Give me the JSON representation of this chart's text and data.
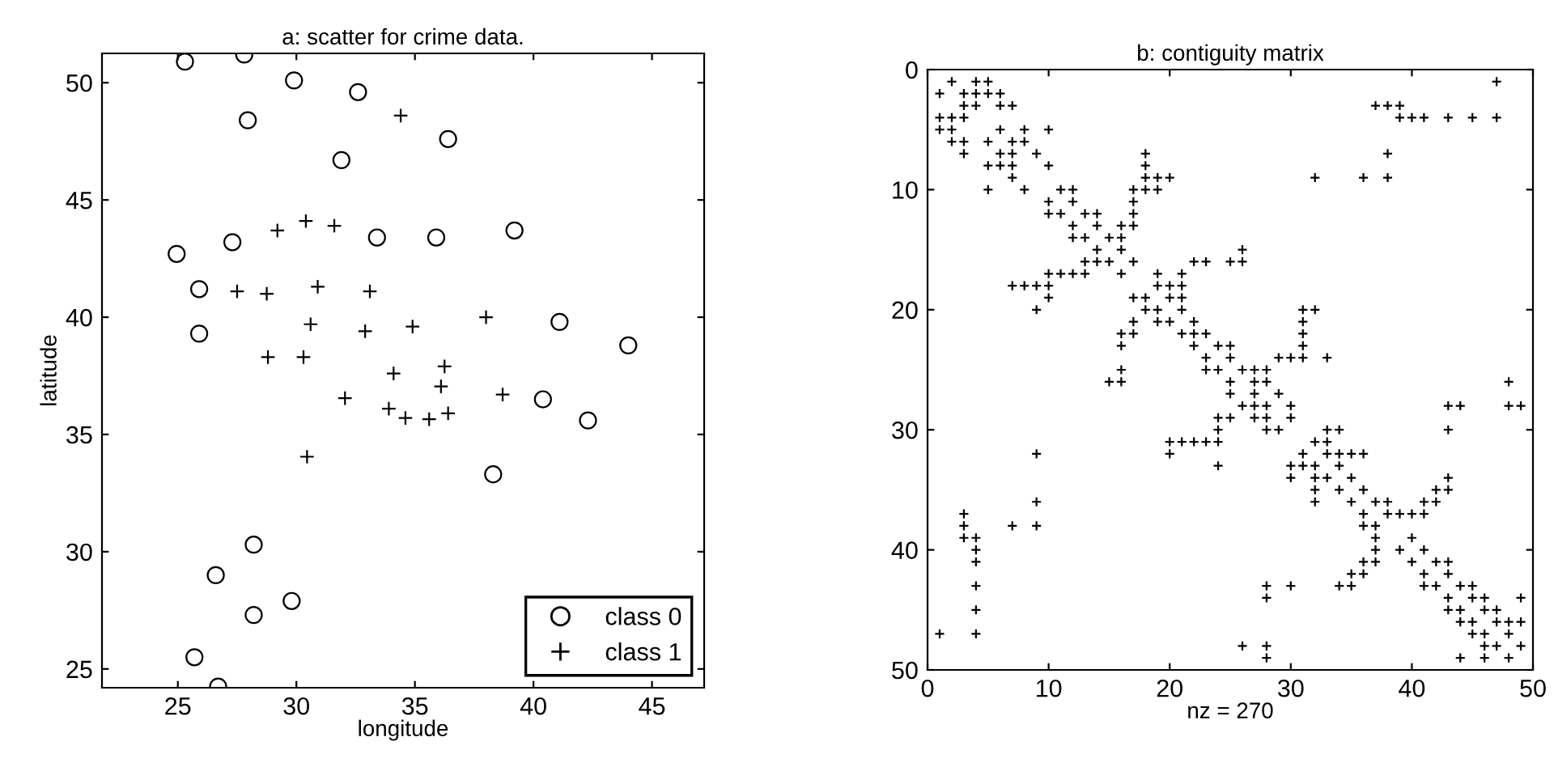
{
  "chart_data": [
    {
      "type": "scatter",
      "title": "a: scatter for crime data.",
      "xlabel": "longitude",
      "ylabel": "latitude",
      "xlim": [
        21.8,
        47.2
      ],
      "ylim": [
        24.2,
        51.25
      ],
      "xticks": [
        25,
        30,
        35,
        40,
        45
      ],
      "yticks": [
        25,
        30,
        35,
        40,
        45,
        50
      ],
      "grid": false,
      "legend": "bottom right",
      "series": [
        {
          "name": "class 0",
          "color": "#000000",
          "marker": "circle",
          "x": [
            25.3,
            27.8,
            29.9,
            32.6,
            27.95,
            36.4,
            31.9,
            24.95,
            27.3,
            33.4,
            35.9,
            39.2,
            25.9,
            25.9,
            41.1,
            44.0,
            40.4,
            42.3,
            38.3,
            28.2,
            26.6,
            29.8,
            28.2,
            25.7,
            26.7
          ],
          "values": [
            50.9,
            51.2,
            50.1,
            49.6,
            48.4,
            47.6,
            46.7,
            42.7,
            43.2,
            43.4,
            43.4,
            43.7,
            41.2,
            39.3,
            39.8,
            38.8,
            36.5,
            35.6,
            33.3,
            30.3,
            29.0,
            27.9,
            27.3,
            25.5,
            24.25
          ]
        },
        {
          "name": "class 1",
          "color": "#000000",
          "marker": "cross",
          "x": [
            34.4,
            29.2,
            30.4,
            31.6,
            27.5,
            28.75,
            30.9,
            33.1,
            30.6,
            34.9,
            32.9,
            38.0,
            28.8,
            30.3,
            34.1,
            36.25,
            32.05,
            33.9,
            34.6,
            35.6,
            36.4,
            36.1,
            38.7,
            30.45
          ],
          "values": [
            48.6,
            43.7,
            44.1,
            43.9,
            41.1,
            41.0,
            41.3,
            41.1,
            39.7,
            39.6,
            39.4,
            40.0,
            38.3,
            38.3,
            37.6,
            37.9,
            36.55,
            36.1,
            35.7,
            35.65,
            35.9,
            37.05,
            36.7,
            34.05
          ]
        }
      ]
    },
    {
      "type": "scatter",
      "title": "b: contiguity matrix",
      "xlabel": "nz = 270",
      "xlim": [
        0,
        50
      ],
      "ylim": [
        50,
        0
      ],
      "xticks": [
        0,
        10,
        20,
        30,
        40,
        50
      ],
      "yticks": [
        0,
        10,
        20,
        30,
        40,
        50
      ],
      "grid": false,
      "series": [
        {
          "color": "#000000",
          "marker": "cross",
          "x": [
            2,
            4,
            5,
            47,
            1,
            3,
            4,
            5,
            6,
            3,
            4,
            6,
            7,
            37,
            38,
            39,
            1,
            2,
            3,
            39,
            40,
            41,
            43,
            45,
            47,
            1,
            2,
            6,
            8,
            10,
            2,
            3,
            5,
            7,
            8,
            3,
            6,
            7,
            9,
            18,
            38,
            5,
            6,
            7,
            10,
            18,
            7,
            18,
            19,
            20,
            32,
            36,
            38,
            5,
            8,
            11,
            12,
            17,
            18,
            19,
            10,
            12,
            17,
            10,
            11,
            13,
            14,
            17,
            12,
            14,
            16,
            17,
            12,
            13,
            15,
            16,
            14,
            16,
            26,
            13,
            14,
            15,
            17,
            22,
            23,
            25,
            26,
            10,
            11,
            12,
            13,
            16,
            19,
            21,
            7,
            8,
            9,
            10,
            19,
            20,
            21,
            10,
            17,
            18,
            20,
            21,
            9,
            18,
            19,
            21,
            31,
            32,
            17,
            19,
            20,
            22,
            31,
            16,
            17,
            21,
            22,
            23,
            31,
            16,
            22,
            24,
            25,
            31,
            23,
            25,
            29,
            30,
            31,
            33,
            16,
            23,
            24,
            26,
            27,
            28,
            15,
            16,
            25,
            27,
            28,
            48,
            25,
            27,
            29,
            26,
            27,
            28,
            30,
            43,
            44,
            48,
            49,
            24,
            25,
            27,
            28,
            30,
            24,
            28,
            29,
            33,
            34,
            43,
            20,
            21,
            22,
            23,
            24,
            32,
            33,
            9,
            20,
            31,
            33,
            34,
            35,
            36,
            24,
            30,
            31,
            32,
            34,
            30,
            32,
            33,
            35,
            43,
            32,
            34,
            36,
            42,
            43,
            9,
            32,
            35,
            37,
            38,
            41,
            42,
            3,
            36,
            38,
            39,
            40,
            41,
            3,
            7,
            9,
            36,
            37,
            3,
            4,
            37,
            40,
            4,
            37,
            39,
            41,
            4,
            36,
            37,
            40,
            42,
            43,
            35,
            36,
            41,
            43,
            4,
            28,
            30,
            34,
            35,
            41,
            42,
            44,
            45,
            28,
            43,
            45,
            46,
            49,
            4,
            43,
            44,
            46,
            47,
            44,
            45,
            47,
            48,
            49,
            1,
            4,
            45,
            46,
            48,
            26,
            28,
            46,
            47,
            49,
            28,
            44,
            46,
            48
          ],
          "values": [
            1,
            1,
            1,
            1,
            2,
            2,
            2,
            2,
            2,
            3,
            3,
            3,
            3,
            3,
            3,
            3,
            4,
            4,
            4,
            4,
            4,
            4,
            4,
            4,
            4,
            5,
            5,
            5,
            5,
            5,
            6,
            6,
            6,
            6,
            6,
            7,
            7,
            7,
            7,
            7,
            7,
            8,
            8,
            8,
            8,
            8,
            9,
            9,
            9,
            9,
            9,
            9,
            9,
            10,
            10,
            10,
            10,
            10,
            10,
            10,
            11,
            11,
            11,
            12,
            12,
            12,
            12,
            12,
            13,
            13,
            13,
            13,
            14,
            14,
            14,
            14,
            15,
            15,
            15,
            16,
            16,
            16,
            16,
            16,
            16,
            16,
            16,
            17,
            17,
            17,
            17,
            17,
            17,
            17,
            18,
            18,
            18,
            18,
            18,
            18,
            18,
            19,
            19,
            19,
            19,
            19,
            20,
            20,
            20,
            20,
            20,
            20,
            21,
            21,
            21,
            21,
            21,
            22,
            22,
            22,
            22,
            22,
            22,
            23,
            23,
            23,
            23,
            23,
            24,
            24,
            24,
            24,
            24,
            24,
            25,
            25,
            25,
            25,
            25,
            25,
            26,
            26,
            26,
            26,
            26,
            26,
            27,
            27,
            27,
            28,
            28,
            28,
            28,
            28,
            28,
            28,
            28,
            29,
            29,
            29,
            29,
            29,
            30,
            30,
            30,
            30,
            30,
            30,
            31,
            31,
            31,
            31,
            31,
            31,
            31,
            32,
            32,
            32,
            32,
            32,
            32,
            32,
            33,
            33,
            33,
            33,
            33,
            34,
            34,
            34,
            34,
            34,
            35,
            35,
            35,
            35,
            35,
            36,
            36,
            36,
            36,
            36,
            36,
            36,
            37,
            37,
            37,
            37,
            37,
            37,
            38,
            38,
            38,
            38,
            38,
            39,
            39,
            39,
            39,
            40,
            40,
            40,
            40,
            41,
            41,
            41,
            41,
            41,
            41,
            42,
            42,
            42,
            42,
            43,
            43,
            43,
            43,
            43,
            43,
            43,
            43,
            43,
            44,
            44,
            44,
            44,
            44,
            45,
            45,
            45,
            45,
            45,
            46,
            46,
            46,
            46,
            46,
            47,
            47,
            47,
            47,
            47,
            48,
            48,
            48,
            48,
            48,
            49,
            49,
            49,
            49
          ]
        }
      ]
    }
  ]
}
